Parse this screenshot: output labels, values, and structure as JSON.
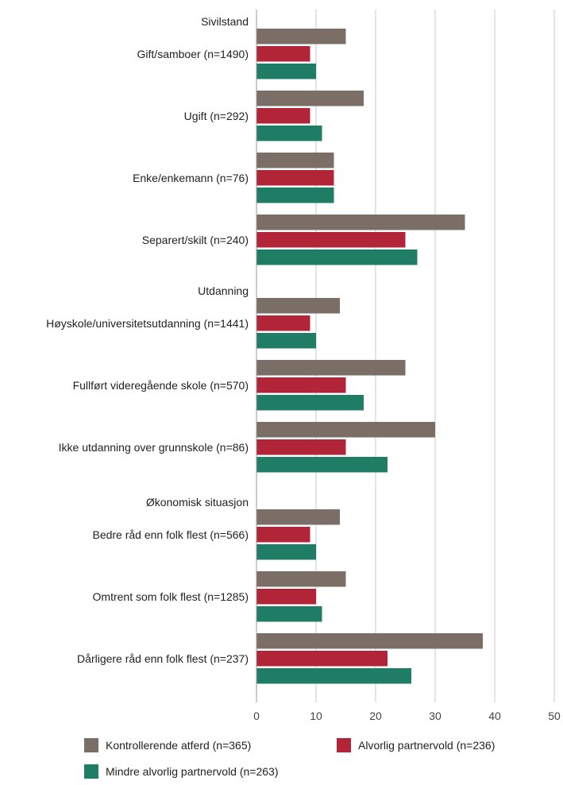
{
  "chart_data": {
    "type": "bar",
    "orientation": "horizontal",
    "xlim": [
      0,
      50
    ],
    "x_ticks": [
      "0",
      "10",
      "20",
      "30",
      "40",
      "50"
    ],
    "grid": true,
    "legend_position": "bottom",
    "series": [
      {
        "name": "Kontrollerende atferd (n=365)",
        "color": "#7a6e66"
      },
      {
        "name": "Alvorlig partnervold (n=236)",
        "color": "#b22437"
      },
      {
        "name": "Mindre alvorlig partnervold (n=263)",
        "color": "#1e7d64"
      }
    ],
    "groups": [
      {
        "title": "Sivilstand",
        "categories": [
          {
            "label": "Gift/samboer (n=1490)",
            "values": [
              15,
              9,
              10
            ]
          },
          {
            "label": "Ugift (n=292)",
            "values": [
              18,
              9,
              11
            ]
          },
          {
            "label": "Enke/enkemann (n=76)",
            "values": [
              13,
              13,
              13
            ]
          },
          {
            "label": "Separert/skilt (n=240)",
            "values": [
              35,
              25,
              27
            ]
          }
        ]
      },
      {
        "title": "Utdanning",
        "categories": [
          {
            "label": "Høyskole/universitetsutdanning (n=1441)",
            "values": [
              14,
              9,
              10
            ]
          },
          {
            "label": "Fullført videregående skole (n=570)",
            "values": [
              25,
              15,
              18
            ]
          },
          {
            "label": "Ikke utdanning over grunnskole (n=86)",
            "values": [
              30,
              15,
              22
            ]
          }
        ]
      },
      {
        "title": "Økonomisk situasjon",
        "categories": [
          {
            "label": "Bedre råd enn folk flest (n=566)",
            "values": [
              14,
              9,
              10
            ]
          },
          {
            "label": "Omtrent som folk flest (n=1285)",
            "values": [
              15,
              10,
              11
            ]
          },
          {
            "label": "Dårligere råd enn folk flest (n=237)",
            "values": [
              38,
              22,
              26
            ]
          }
        ]
      }
    ]
  }
}
